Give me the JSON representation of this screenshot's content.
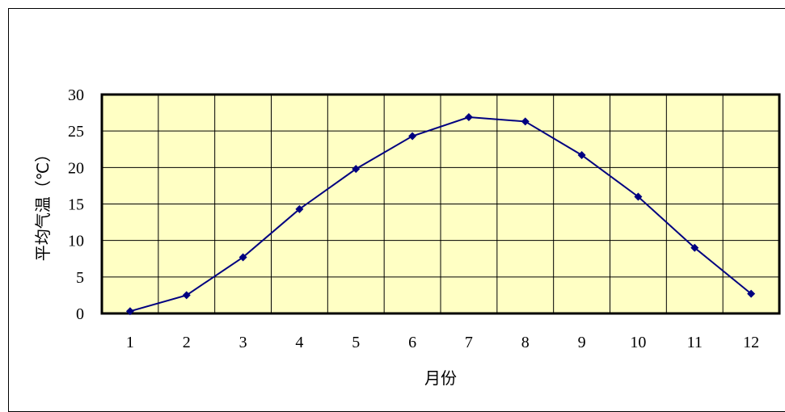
{
  "chart_data": {
    "type": "line",
    "title": "",
    "xlabel": "月份",
    "ylabel": "平均气温（℃）",
    "categories": [
      "1",
      "2",
      "3",
      "4",
      "5",
      "6",
      "7",
      "8",
      "9",
      "10",
      "11",
      "12"
    ],
    "series": [
      {
        "values": [
          0.3,
          2.5,
          7.7,
          14.3,
          19.8,
          24.3,
          26.9,
          26.3,
          21.7,
          16.0,
          9.0,
          2.7
        ]
      }
    ],
    "ylim": [
      0,
      30
    ],
    "yticks": [
      "0",
      "5",
      "10",
      "15",
      "20",
      "25",
      "30"
    ],
    "grid": true,
    "legend": "none",
    "colors": {
      "plot_background": "#ffffc4",
      "line": "#000080",
      "marker": "#000080",
      "grid": "#000000"
    }
  }
}
